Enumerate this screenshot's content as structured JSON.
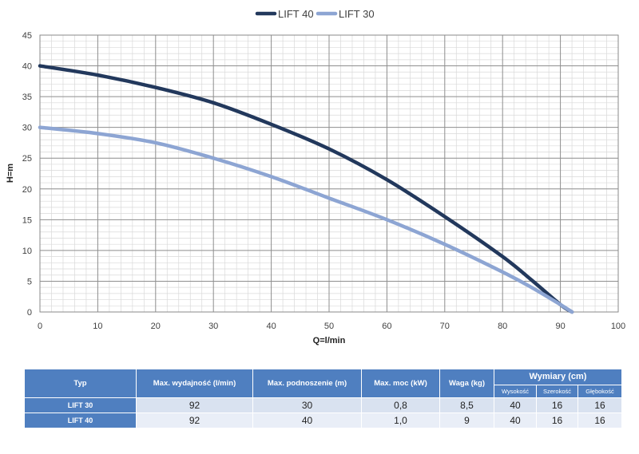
{
  "chart_data": {
    "type": "line",
    "xlabel": "Q=l/min",
    "ylabel": "H=m",
    "xlim": [
      0,
      100
    ],
    "ylim": [
      0,
      45
    ],
    "x_ticks": [
      "0",
      "10",
      "20",
      "30",
      "40",
      "50",
      "60",
      "70",
      "80",
      "90",
      "100"
    ],
    "y_ticks": [
      "0",
      "5",
      "10",
      "15",
      "20",
      "25",
      "30",
      "35",
      "40",
      "45"
    ],
    "grid": true,
    "legend_position": "top-center",
    "series": [
      {
        "name": "LIFT 40",
        "color": "#22385c",
        "x": [
          0,
          10,
          20,
          30,
          40,
          50,
          60,
          70,
          80,
          85,
          90,
          92
        ],
        "y": [
          40,
          38.5,
          36.5,
          34,
          30.5,
          26.5,
          21.5,
          15.5,
          9,
          5.2,
          1.2,
          0
        ]
      },
      {
        "name": "LIFT 30",
        "color": "#8da5d3",
        "x": [
          0,
          10,
          20,
          30,
          40,
          50,
          60,
          70,
          80,
          85,
          90,
          92
        ],
        "y": [
          30,
          29,
          27.5,
          25,
          22,
          18.5,
          15,
          11,
          6.5,
          4,
          1.2,
          0
        ]
      }
    ]
  },
  "table": {
    "headers": {
      "typ": "Typ",
      "flow": "Max. wydajność (l/min)",
      "head": "Max. podnoszenie (m)",
      "power": "Max. moc (kW)",
      "weight": "Waga (kg)",
      "dims": "Wymiary (cm)",
      "height": "Wysokość",
      "width": "Szerokość",
      "depth": "Głębokość"
    },
    "rows": [
      {
        "typ": "LIFT 30",
        "flow": "92",
        "head": "30",
        "power": "0,8",
        "weight": "8,5",
        "height": "40",
        "width": "16",
        "depth": "16"
      },
      {
        "typ": "LIFT 40",
        "flow": "92",
        "head": "40",
        "power": "1,0",
        "weight": "9",
        "height": "40",
        "width": "16",
        "depth": "16"
      }
    ]
  }
}
